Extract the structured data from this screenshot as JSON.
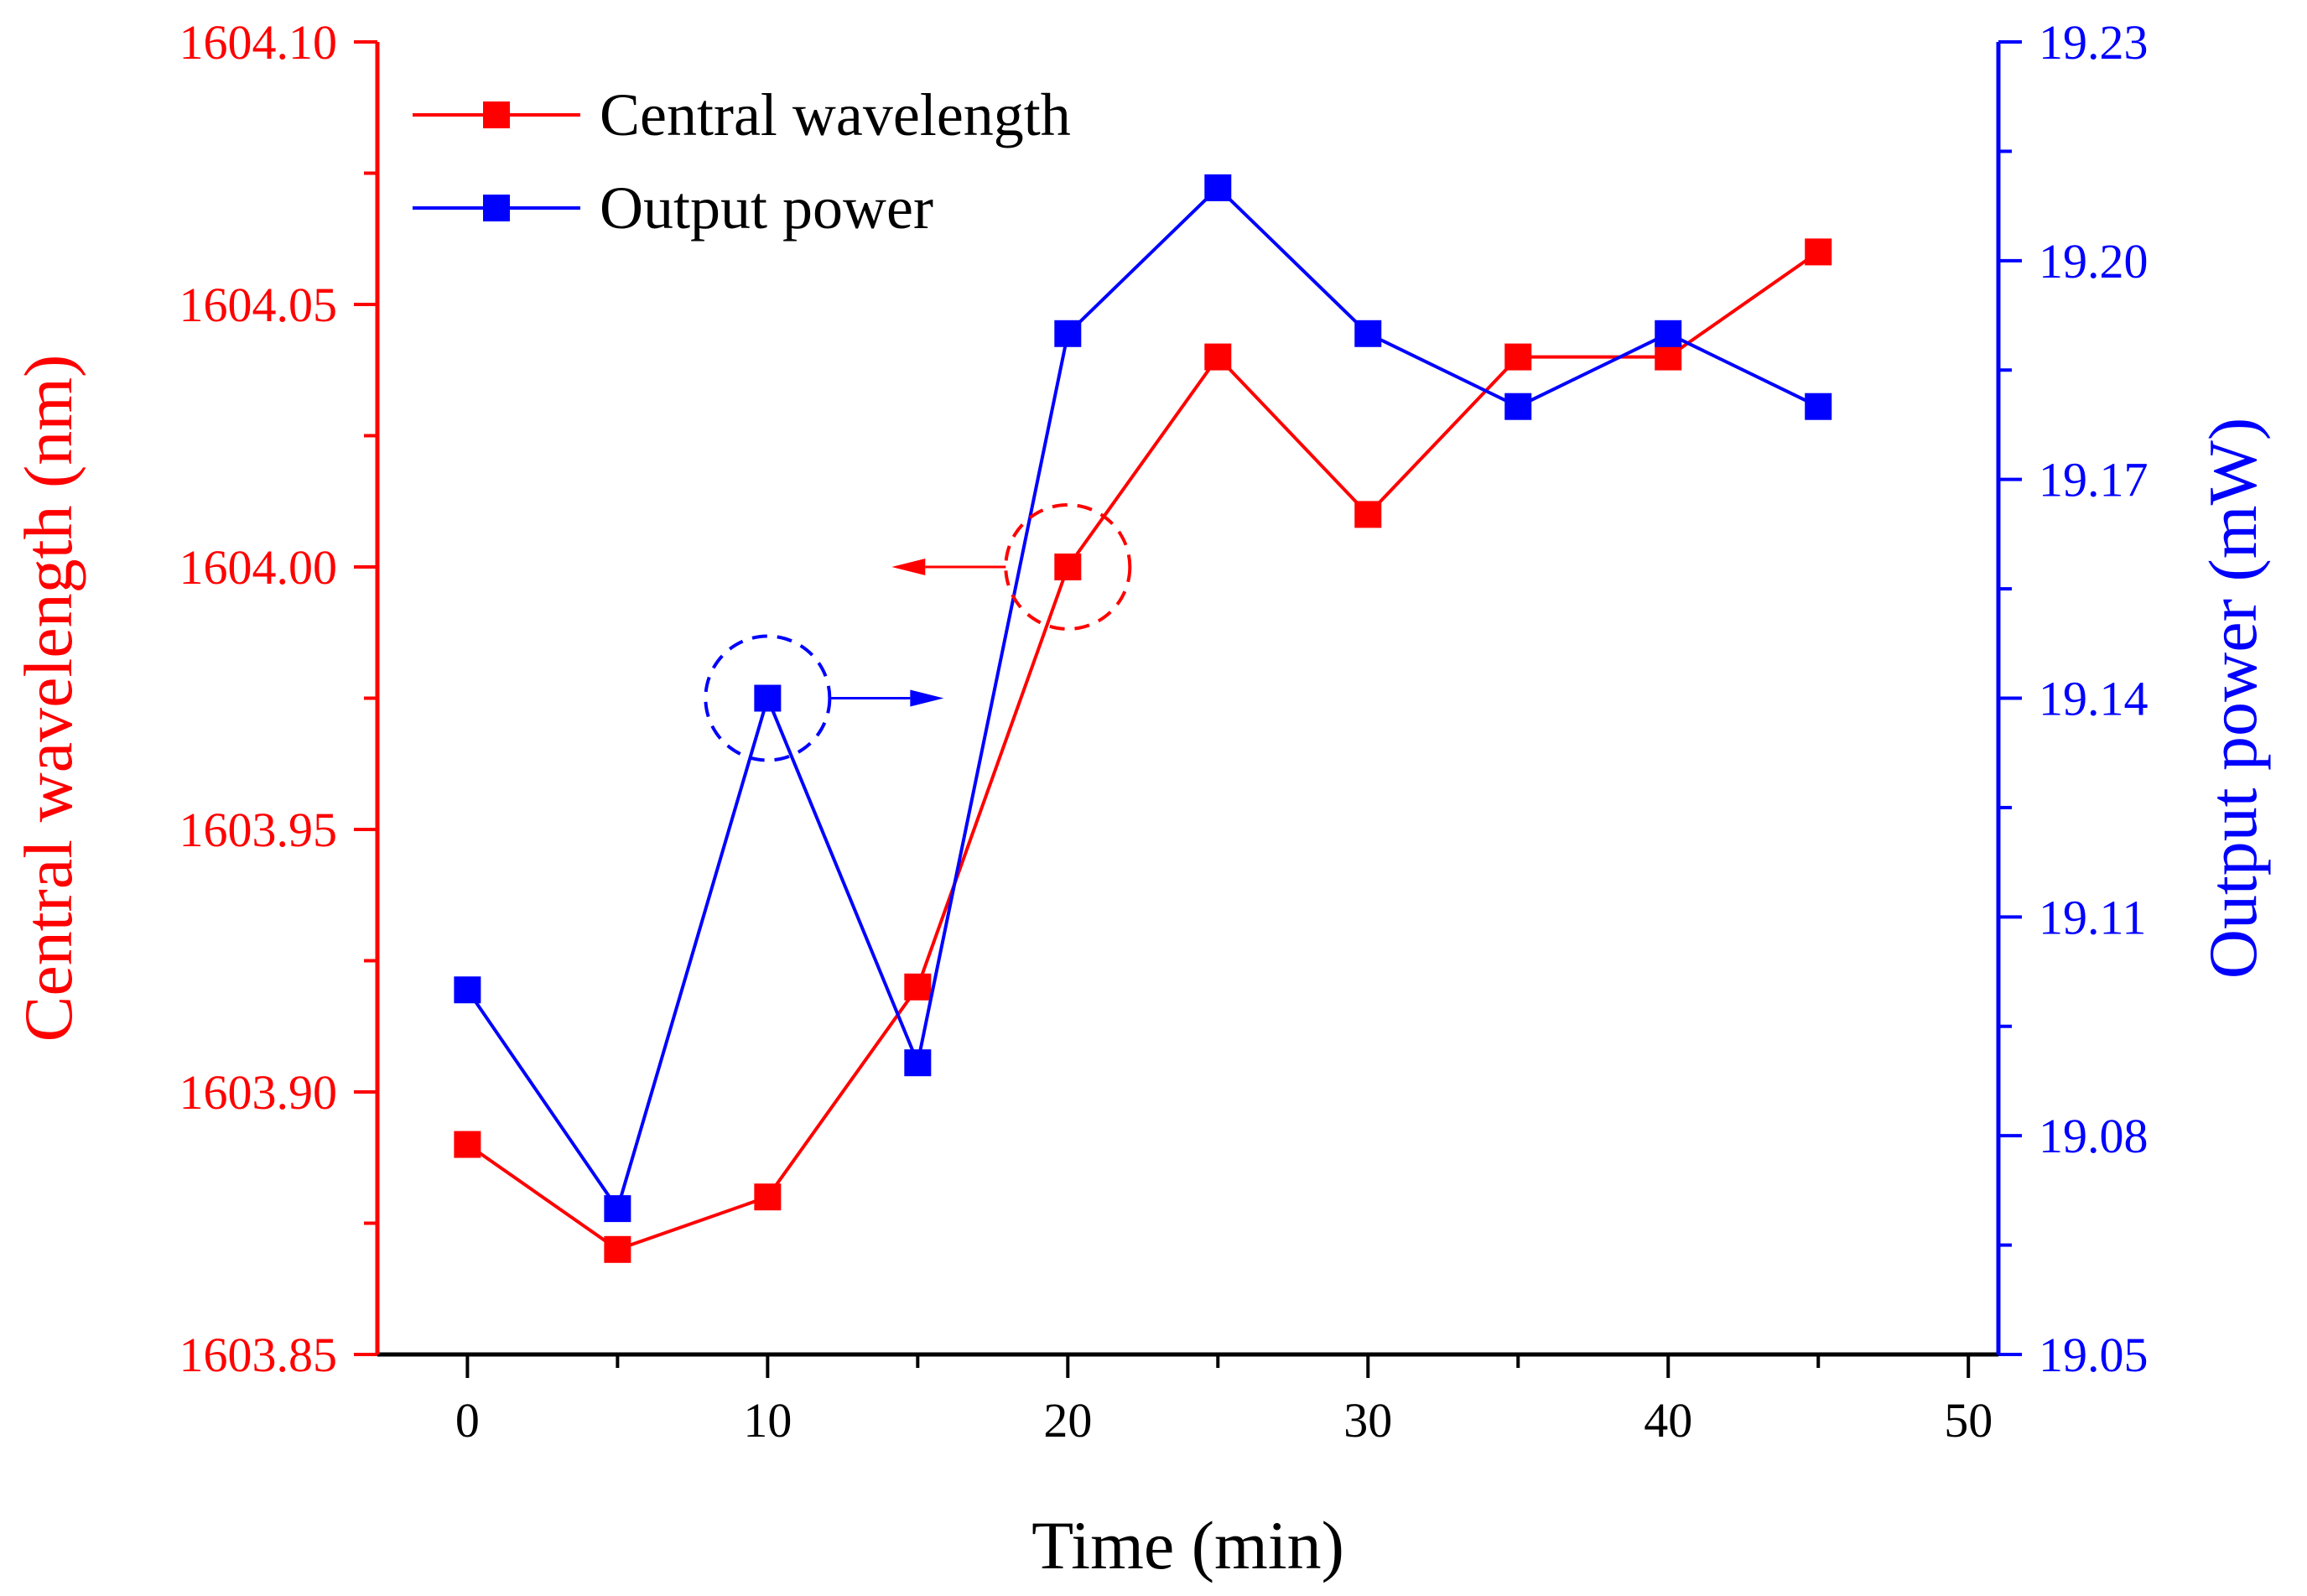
{
  "chart_data": {
    "type": "line",
    "x": [
      0,
      5,
      10,
      15,
      20,
      25,
      30,
      35,
      40,
      45
    ],
    "xlabel": "Time (min)",
    "xlim": [
      -3,
      51
    ],
    "xticks": [
      0,
      10,
      20,
      30,
      40,
      50
    ],
    "xtick_labels": [
      "0",
      "10",
      "20",
      "30",
      "40",
      "50"
    ],
    "y_left": {
      "label": "Central wavelength (nm)",
      "lim": [
        1603.85,
        1604.1
      ],
      "ticks": [
        1603.85,
        1603.9,
        1603.95,
        1604.0,
        1604.05,
        1604.1
      ],
      "tick_labels": [
        "1603.85",
        "1603.90",
        "1603.95",
        "1604.00",
        "1604.05",
        "1604.10"
      ],
      "color": "#ff0000"
    },
    "y_right": {
      "label": "Output power (mW)",
      "lim": [
        19.05,
        19.23
      ],
      "ticks": [
        19.05,
        19.08,
        19.11,
        19.14,
        19.17,
        19.2,
        19.23
      ],
      "tick_labels": [
        "19.05",
        "19.08",
        "19.11",
        "19.14",
        "19.17",
        "19.20",
        "19.23"
      ],
      "color": "#0000ff"
    },
    "series": [
      {
        "name": "Central wavelength",
        "axis": "left",
        "color": "#ff0000",
        "values": [
          1603.89,
          1603.87,
          1603.88,
          1603.92,
          1604.0,
          1604.04,
          1604.01,
          1604.04,
          1604.04,
          1604.06
        ]
      },
      {
        "name": "Output power",
        "axis": "right",
        "color": "#0000ff",
        "values": [
          19.1,
          19.07,
          19.14,
          19.09,
          19.19,
          19.21,
          19.19,
          19.18,
          19.19,
          19.18
        ]
      }
    ],
    "annotations": [
      {
        "type": "dashed-circle-with-arrow",
        "series": "Central wavelength",
        "at_x": 20,
        "points_to": "left axis"
      },
      {
        "type": "dashed-circle-with-arrow",
        "series": "Output power",
        "at_x": 10,
        "points_to": "right axis"
      }
    ],
    "legend_position": "top-left"
  }
}
